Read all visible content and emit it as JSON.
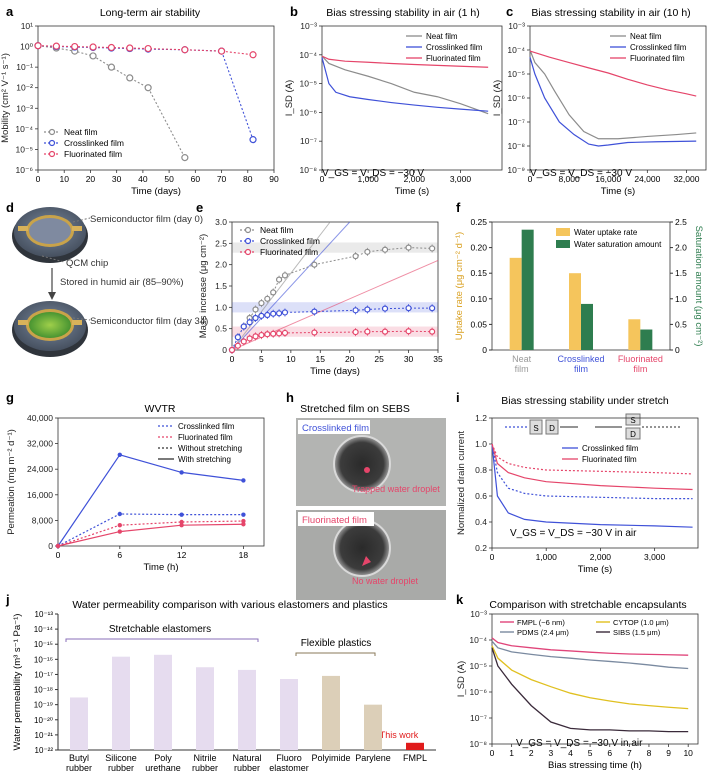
{
  "panels": {
    "a": {
      "label": "a",
      "title": "Long-term air stability"
    },
    "b": {
      "label": "b",
      "title": "Bias stressing stability in air (1 h)",
      "bias_note": "V_GS = V_DS = −30 V"
    },
    "c": {
      "label": "c",
      "title": "Bias stressing stability in air (10 h)",
      "bias_note": "V_GS = V_DS = −30 V"
    },
    "d": {
      "label": "d",
      "semi_day0": "Semiconductor film (day 0)",
      "qcm": "QCM chip",
      "stored": "Stored in humid air (85–90%)",
      "semi_day34": "Semiconductor film (day 34)"
    },
    "e": {
      "label": "e"
    },
    "f": {
      "label": "f"
    },
    "g": {
      "label": "g",
      "title": "WVTR"
    },
    "h": {
      "label": "h",
      "title": "Stretched film on SEBS",
      "crosslinked_label": "Crosslinked film",
      "crosslinked_note": "Trapped water droplet",
      "fluorinated_label": "Fluorinated film",
      "fluorinated_note": "No water droplet"
    },
    "i": {
      "label": "i",
      "title": "Bias stressing stability under stretch",
      "bias_note": "V_GS = V_DS = −30 V in air",
      "diag_s": "S",
      "diag_d": "D"
    },
    "j": {
      "label": "j",
      "title": "Water permeability comparison with various elastomers and plastics",
      "group1": "Stretchable elastomers",
      "group2": "Flexible plastics",
      "this_work": "This work"
    },
    "k": {
      "label": "k",
      "title": "Comparison with stretchable encapsulants",
      "bias_note": "V_GS = V_DS = −30 V in air"
    }
  },
  "colors": {
    "neat": "#8c8c8c",
    "crosslinked": "#3f51d8",
    "fluorinated": "#e5456a",
    "uptake": "#f5c55c",
    "saturation": "#2e7d4f",
    "j_bar": "#e6dcef",
    "j_plastic": "#dccfb8",
    "fmpl": "#e01b1b",
    "k_fmpl": "#e0457a",
    "k_pdms": "#7a8aa0",
    "k_cytop": "#e0c020",
    "k_sibs": "#3a2a3a"
  },
  "chart_data": [
    {
      "id": "a",
      "type": "line",
      "xlabel": "Time (days)",
      "ylabel": "Mobility (cm² V⁻¹ s⁻¹)",
      "yscale": "log",
      "ylim": [
        1e-06,
        10
      ],
      "xlim": [
        0,
        90
      ],
      "xticks": [
        "0",
        "10",
        "20",
        "30",
        "40",
        "50",
        "60",
        "70",
        "80",
        "90"
      ],
      "yticks": [
        "10⁻⁶",
        "10⁻⁵",
        "10⁻⁴",
        "10⁻³",
        "10⁻²",
        "10⁻¹",
        "10⁰",
        "10¹"
      ],
      "series": [
        {
          "name": "Neat film",
          "x": [
            0,
            7,
            14,
            21,
            28,
            35,
            42,
            56
          ],
          "y": [
            1.1,
            0.85,
            0.6,
            0.35,
            0.1,
            0.03,
            0.01,
            4e-06
          ]
        },
        {
          "name": "Crosslinked film",
          "x": [
            0,
            7,
            14,
            21,
            28,
            35,
            42,
            56,
            70,
            82
          ],
          "y": [
            1.1,
            1.0,
            0.95,
            0.9,
            0.85,
            0.8,
            0.75,
            0.7,
            0.6,
            3e-05
          ]
        },
        {
          "name": "Fluorinated film",
          "x": [
            0,
            7,
            14,
            21,
            28,
            35,
            42,
            56,
            70,
            82
          ],
          "y": [
            1.1,
            1.05,
            1.0,
            0.95,
            0.9,
            0.85,
            0.8,
            0.7,
            0.6,
            0.4
          ]
        }
      ]
    },
    {
      "id": "b",
      "type": "line",
      "xlabel": "Time (s)",
      "ylabel": "I_SD (A)",
      "yscale": "log",
      "ylim": [
        1e-08,
        0.001
      ],
      "xlim": [
        0,
        3900
      ],
      "xticks": [
        "0",
        "1,000",
        "2,000",
        "3,000"
      ],
      "yticks": [
        "10⁻⁸",
        "10⁻⁷",
        "10⁻⁶",
        "10⁻⁵",
        "10⁻⁴",
        "10⁻³"
      ],
      "series": [
        {
          "name": "Neat film",
          "x": [
            0,
            150,
            500,
            1000,
            1500,
            2000,
            2500,
            3000,
            3600
          ],
          "y": [
            9e-05,
            5e-05,
            3e-05,
            1.8e-05,
            1e-05,
            5e-06,
            3.5e-06,
            2e-06,
            9e-07
          ]
        },
        {
          "name": "Crosslinked film",
          "x": [
            0,
            150,
            300,
            600,
            1000,
            1500,
            2000,
            2500,
            3000,
            3600
          ],
          "y": [
            8e-05,
            1e-05,
            5e-06,
            3.5e-06,
            2.8e-06,
            2.2e-06,
            1.8e-06,
            1.5e-06,
            1.3e-06,
            1.1e-06
          ]
        },
        {
          "name": "Fluorinated film",
          "x": [
            0,
            150,
            500,
            1000,
            1500,
            2000,
            2500,
            3000,
            3600
          ],
          "y": [
            9e-05,
            7e-05,
            6e-05,
            5.5e-05,
            5e-05,
            4.6e-05,
            4.3e-05,
            4e-05,
            3.7e-05
          ]
        }
      ]
    },
    {
      "id": "c",
      "type": "line",
      "xlabel": "Time (s)",
      "ylabel": "I_SD (A)",
      "yscale": "log",
      "ylim": [
        1e-09,
        0.001
      ],
      "xlim": [
        0,
        36000
      ],
      "xticks": [
        "0",
        "8,000",
        "16,000",
        "24,000",
        "32,000"
      ],
      "yticks": [
        "10⁻⁹",
        "10⁻⁸",
        "10⁻⁷",
        "10⁻⁶",
        "10⁻⁵",
        "10⁻⁴",
        "10⁻³"
      ],
      "series": [
        {
          "name": "Neat film",
          "x": [
            0,
            1000,
            3000,
            5000,
            8000,
            11000,
            14000,
            18000,
            24000,
            30000,
            34000
          ],
          "y": [
            0.0001,
            3e-05,
            1e-05,
            2e-06,
            2e-07,
            4e-08,
            2e-08,
            2e-08,
            2.5e-08,
            3e-08,
            3.5e-08
          ]
        },
        {
          "name": "Crosslinked film",
          "x": [
            0,
            1000,
            3000,
            6000,
            9000,
            12000,
            14000,
            16000,
            20000,
            26000,
            34000
          ],
          "y": [
            5e-05,
            1e-05,
            1e-06,
            1e-07,
            3e-08,
            1.2e-08,
            1e-08,
            1.1e-08,
            1.4e-08,
            1.5e-08,
            1.6e-08
          ]
        },
        {
          "name": "Fluorinated film",
          "x": [
            0,
            4000,
            8000,
            12000,
            16000,
            20000,
            24000,
            28000,
            32000,
            34000
          ],
          "y": [
            9e-05,
            5e-05,
            3e-05,
            1.8e-05,
            1.1e-05,
            6e-06,
            3.5e-06,
            2.2e-06,
            1.5e-06,
            1.2e-06
          ]
        }
      ]
    },
    {
      "id": "e",
      "type": "line",
      "xlabel": "Time (days)",
      "ylabel": "Mass increase (μg cm⁻²)",
      "ylim": [
        0,
        3.0
      ],
      "xlim": [
        0,
        35
      ],
      "xticks": [
        "0",
        "5",
        "10",
        "15",
        "20",
        "25",
        "30",
        "35"
      ],
      "yticks": [
        "0",
        "0.5",
        "1.0",
        "1.5",
        "2.0",
        "2.5",
        "3.0"
      ],
      "series": [
        {
          "name": "Neat film",
          "x": [
            0,
            1,
            2,
            3,
            4,
            5,
            6,
            7,
            8,
            9,
            14,
            21,
            23,
            26,
            30,
            34
          ],
          "y": [
            0,
            0.3,
            0.55,
            0.75,
            0.95,
            1.1,
            1.2,
            1.35,
            1.65,
            1.75,
            2.0,
            2.2,
            2.3,
            2.35,
            2.4,
            2.38
          ]
        },
        {
          "name": "Crosslinked film",
          "x": [
            0,
            1,
            2,
            3,
            4,
            5,
            6,
            7,
            8,
            9,
            14,
            21,
            23,
            26,
            30,
            34
          ],
          "y": [
            0,
            0.3,
            0.55,
            0.65,
            0.75,
            0.8,
            0.82,
            0.85,
            0.86,
            0.88,
            0.9,
            0.93,
            0.95,
            0.97,
            0.98,
            0.98
          ]
        },
        {
          "name": "Fluorinated film",
          "x": [
            0,
            1,
            2,
            3,
            4,
            5,
            6,
            7,
            8,
            9,
            14,
            21,
            23,
            26,
            30,
            34
          ],
          "y": [
            0,
            0.1,
            0.2,
            0.27,
            0.32,
            0.35,
            0.37,
            0.38,
            0.39,
            0.4,
            0.41,
            0.42,
            0.43,
            0.43,
            0.44,
            0.43
          ]
        }
      ]
    },
    {
      "id": "f",
      "type": "bar",
      "categories": [
        "Neat film",
        "Crosslinked film",
        "Fluorinated film"
      ],
      "ylabel_left": "Uptake rate (μg cm⁻² d⁻¹)",
      "ylabel_right": "Saturation amount (μg cm⁻²)",
      "ylim_left": [
        0,
        0.25
      ],
      "ylim_right": [
        0,
        2.5
      ],
      "yticks_left": [
        "0",
        "0.05",
        "0.10",
        "0.15",
        "0.20",
        "0.25"
      ],
      "yticks_right": [
        "0",
        "0.5",
        "1.0",
        "1.5",
        "2.0",
        "2.5"
      ],
      "series": [
        {
          "name": "Water uptake rate",
          "values": [
            0.18,
            0.15,
            0.06
          ]
        },
        {
          "name": "Water saturation amount",
          "values": [
            2.35,
            0.9,
            0.4
          ]
        }
      ]
    },
    {
      "id": "g",
      "type": "line",
      "xlabel": "Time (h)",
      "ylabel": "Permeation (mg m⁻² d⁻¹)",
      "ylim": [
        0,
        40000
      ],
      "xlim": [
        0,
        20
      ],
      "xticks": [
        "0",
        "6",
        "12",
        "18"
      ],
      "yticks": [
        "0",
        "8,000",
        "16,000",
        "24,000",
        "32,000",
        "40,000"
      ],
      "legend": [
        "Crosslinked film",
        "Fluorinated film",
        "Without stretching",
        "With stretching"
      ],
      "series": [
        {
          "name": "Crosslinked (no stretch)",
          "x": [
            0,
            6,
            12,
            18
          ],
          "y": [
            0,
            10000,
            9800,
            9800
          ]
        },
        {
          "name": "Crosslinked (stretch)",
          "x": [
            0,
            6,
            12,
            18
          ],
          "y": [
            0,
            28500,
            23000,
            20500
          ]
        },
        {
          "name": "Fluorinated (no stretch)",
          "x": [
            0,
            6,
            12,
            18
          ],
          "y": [
            0,
            6500,
            7500,
            7800
          ]
        },
        {
          "name": "Fluorinated (stretch)",
          "x": [
            0,
            6,
            12,
            18
          ],
          "y": [
            0,
            4500,
            6500,
            6800
          ]
        }
      ]
    },
    {
      "id": "i",
      "type": "line",
      "xlabel": "Time (s)",
      "ylabel": "Normalized drain current",
      "ylim": [
        0.2,
        1.2
      ],
      "xlim": [
        0,
        3800
      ],
      "xticks": [
        "0",
        "1,000",
        "2,000",
        "3,000"
      ],
      "yticks": [
        "0.2",
        "0.4",
        "0.6",
        "0.8",
        "1.0",
        "1.2"
      ],
      "legend": [
        "Crosslinked film",
        "Fluorinated film"
      ],
      "series": [
        {
          "name": "Crosslinked (no stretch)",
          "x": [
            0,
            100,
            300,
            600,
            1000,
            2000,
            3000,
            3700
          ],
          "y": [
            1,
            0.78,
            0.66,
            0.62,
            0.6,
            0.59,
            0.58,
            0.58
          ]
        },
        {
          "name": "Crosslinked (stretch)",
          "x": [
            0,
            100,
            300,
            600,
            1000,
            2000,
            3000,
            3700
          ],
          "y": [
            1,
            0.6,
            0.47,
            0.42,
            0.4,
            0.38,
            0.37,
            0.36
          ]
        },
        {
          "name": "Fluorinated (no stretch)",
          "x": [
            0,
            100,
            300,
            600,
            1000,
            2000,
            3000,
            3700
          ],
          "y": [
            1,
            0.9,
            0.85,
            0.82,
            0.8,
            0.79,
            0.78,
            0.77
          ]
        },
        {
          "name": "Fluorinated (stretch)",
          "x": [
            0,
            100,
            300,
            600,
            1000,
            2000,
            3000,
            3700
          ],
          "y": [
            1,
            0.85,
            0.78,
            0.74,
            0.71,
            0.68,
            0.66,
            0.65
          ]
        }
      ]
    },
    {
      "id": "j",
      "type": "bar",
      "ylabel": "Water permeability (m³ s⁻¹ Pa⁻¹)",
      "yscale": "log",
      "ylim": [
        1e-22,
        1e-13
      ],
      "yticks": [
        "10⁻²²",
        "10⁻²¹",
        "10⁻²⁰",
        "10⁻¹⁹",
        "10⁻¹⁸",
        "10⁻¹⁷",
        "10⁻¹⁶",
        "10⁻¹⁵",
        "10⁻¹⁴",
        "10⁻¹³"
      ],
      "categories": [
        "Butyl rubber",
        "Silicone rubber",
        "Poly urethane",
        "Nitrile rubber",
        "Natural rubber",
        "Fluoro elastomer",
        "Polyimide",
        "Parylene",
        "FMPL"
      ],
      "values": [
        3e-19,
        1.5e-16,
        2e-16,
        3e-17,
        2e-17,
        5e-18,
        8e-18,
        1e-19,
        3e-22
      ]
    },
    {
      "id": "k",
      "type": "line",
      "xlabel": "Bias stressing time (h)",
      "ylabel": "I_SD (A)",
      "yscale": "log",
      "ylim": [
        1e-08,
        0.001
      ],
      "xlim": [
        0,
        10.5
      ],
      "xticks": [
        "0",
        "1",
        "2",
        "3",
        "4",
        "5",
        "6",
        "7",
        "8",
        "9",
        "10"
      ],
      "yticks": [
        "10⁻⁸",
        "10⁻⁷",
        "10⁻⁶",
        "10⁻⁵",
        "10⁻⁴",
        "10⁻³"
      ],
      "legend": [
        "FMPL (~6 nm)",
        "PDMS (2.4 μm)",
        "CYTOP (1.0 μm)",
        "SIBS (1.5 μm)"
      ],
      "series": [
        {
          "name": "FMPL (~6 nm)",
          "x": [
            0,
            0.3,
            1,
            2,
            3,
            4,
            5,
            6,
            7,
            8,
            9,
            10
          ],
          "y": [
            0.00012,
            8e-05,
            6e-05,
            5e-05,
            4.2e-05,
            3.8e-05,
            3.4e-05,
            3.1e-05,
            2.9e-05,
            2.8e-05,
            2.7e-05,
            2.6e-05
          ]
        },
        {
          "name": "PDMS (2.4 μm)",
          "x": [
            0,
            0.3,
            1,
            2,
            3,
            4,
            5,
            6,
            7,
            8,
            9,
            10
          ],
          "y": [
            9e-05,
            5e-05,
            3.5e-05,
            2.8e-05,
            2.3e-05,
            2e-05,
            1.7e-05,
            1.5e-05,
            1.3e-05,
            1.1e-05,
            9e-06,
            8e-06
          ]
        },
        {
          "name": "CYTOP (1.0 μm)",
          "x": [
            0,
            0.3,
            1,
            2,
            3,
            4,
            5,
            6,
            7,
            8,
            9,
            10
          ],
          "y": [
            6e-05,
            2e-05,
            7e-06,
            3e-06,
            1.6e-06,
            9e-07,
            6e-07,
            4.5e-07,
            3.5e-07,
            3e-07,
            2.6e-07,
            2.3e-07
          ]
        },
        {
          "name": "SIBS (1.5 μm)",
          "x": [
            0,
            0.3,
            1,
            2,
            3,
            4,
            5,
            6,
            7,
            8,
            9,
            10
          ],
          "y": [
            5e-05,
            1e-05,
            2e-06,
            3e-07,
            7e-08,
            4e-08,
            3.5e-08,
            3.5e-08,
            3.2e-08,
            3.2e-08,
            3e-08,
            3e-08
          ]
        }
      ]
    }
  ]
}
